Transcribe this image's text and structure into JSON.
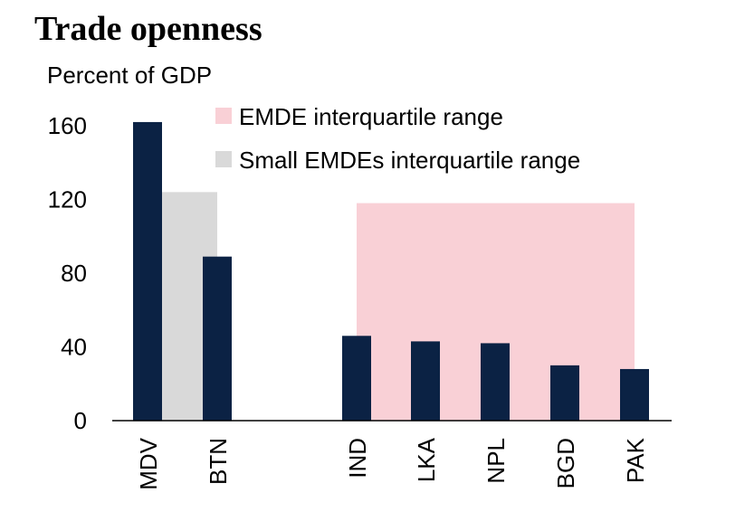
{
  "chart_data": {
    "type": "bar",
    "title": "Trade openness",
    "ylabel": "Percent of GDP",
    "xlabel": "",
    "ylim": [
      0,
      160
    ],
    "yticks": [
      0,
      40,
      80,
      120,
      160
    ],
    "grid": false,
    "legend_position": "top-right",
    "categories": [
      "MDV",
      "BTN",
      "",
      "IND",
      "LKA",
      "NPL",
      "BGD",
      "PAK"
    ],
    "values": [
      162,
      89,
      null,
      46,
      43,
      42,
      30,
      28
    ],
    "bar_color": "#0b2244",
    "ranges": [
      {
        "name": "EMDE interquartile range",
        "color": "#f9d0d6",
        "y_range": [
          0,
          118
        ],
        "x_span": [
          "IND",
          "PAK"
        ]
      },
      {
        "name": "Small EMDEs interquartile range",
        "color": "#d9d9d9",
        "y_range": [
          0,
          124
        ],
        "x_span": [
          "MDV",
          "BTN"
        ]
      }
    ]
  }
}
